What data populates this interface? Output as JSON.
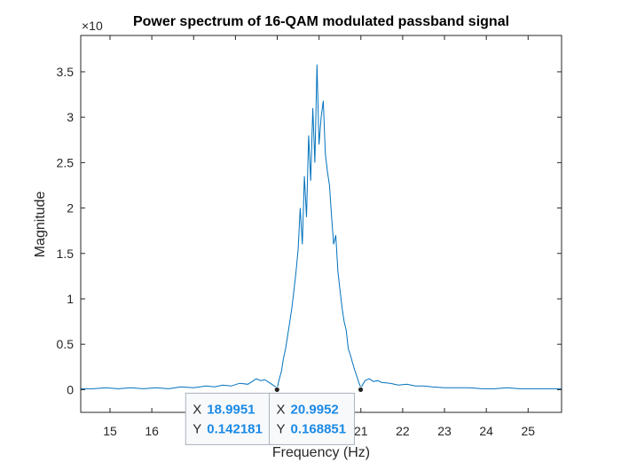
{
  "chart_data": {
    "type": "line",
    "title": "Power spectrum of 16-QAM modulated passband signal",
    "xlabel": "Frequency (Hz)",
    "ylabel": "Magnitude",
    "y_exponent_label": "×10",
    "xlim": [
      14.3,
      25.8
    ],
    "ylim": [
      -0.25,
      3.9
    ],
    "xticks": [
      15,
      16,
      17,
      18,
      19,
      20,
      21,
      22,
      23,
      24,
      25
    ],
    "xtick_labels": [
      "15",
      "16",
      "17",
      "18",
      "19",
      "20",
      "21",
      "22",
      "23",
      "24",
      "25"
    ],
    "yticks": [
      0,
      0.5,
      1,
      1.5,
      2,
      2.5,
      3,
      3.5
    ],
    "ytick_labels": [
      "0",
      "0.5",
      "1",
      "1.5",
      "2",
      "2.5",
      "3",
      "3.5"
    ],
    "grid": false,
    "line_color": "#0072BD",
    "series": [
      {
        "x": [
          14.3,
          14.6,
          14.9,
          15.2,
          15.5,
          15.8,
          16.1,
          16.4,
          16.7,
          17.0,
          17.3,
          17.5,
          17.7,
          17.9,
          18.1,
          18.3,
          18.5,
          18.6,
          18.7,
          18.8,
          18.9,
          19.0,
          19.05,
          19.1,
          19.15,
          19.2,
          19.25,
          19.3,
          19.35,
          19.4,
          19.45,
          19.5,
          19.55,
          19.6,
          19.65,
          19.7,
          19.75,
          19.8,
          19.85,
          19.9,
          19.95,
          20.0,
          20.05,
          20.1,
          20.15,
          20.2,
          20.25,
          20.3,
          20.35,
          20.4,
          20.45,
          20.5,
          20.55,
          20.6,
          20.65,
          20.7,
          20.75,
          20.8,
          20.85,
          20.9,
          20.95,
          21.0,
          21.1,
          21.2,
          21.3,
          21.4,
          21.5,
          21.7,
          21.9,
          22.1,
          22.3,
          22.5,
          22.7,
          23.0,
          23.3,
          23.6,
          23.9,
          24.2,
          24.5,
          24.8,
          25.1,
          25.4,
          25.8
        ],
        "y": [
          0.01,
          0.01,
          0.02,
          0.01,
          0.02,
          0.01,
          0.02,
          0.01,
          0.03,
          0.02,
          0.04,
          0.03,
          0.05,
          0.04,
          0.07,
          0.06,
          0.12,
          0.1,
          0.11,
          0.08,
          0.05,
          0.02,
          0.12,
          0.2,
          0.35,
          0.45,
          0.6,
          0.75,
          0.9,
          1.1,
          1.3,
          1.55,
          2.0,
          1.6,
          2.35,
          1.9,
          2.8,
          2.3,
          3.1,
          2.5,
          3.58,
          2.7,
          3.0,
          3.18,
          2.6,
          2.4,
          2.25,
          1.9,
          1.6,
          1.7,
          1.3,
          1.1,
          0.9,
          0.75,
          0.65,
          0.45,
          0.38,
          0.3,
          0.22,
          0.15,
          0.08,
          0.02,
          0.1,
          0.12,
          0.09,
          0.1,
          0.08,
          0.07,
          0.05,
          0.06,
          0.04,
          0.04,
          0.03,
          0.02,
          0.02,
          0.02,
          0.01,
          0.01,
          0.02,
          0.01,
          0.01,
          0.01,
          0.01
        ]
      }
    ],
    "datatips": [
      {
        "x_label": "X",
        "x_value": "18.9951",
        "y_label": "Y",
        "y_value": "0.142181",
        "x": 18.9951,
        "y": 0.0
      },
      {
        "x_label": "X",
        "x_value": "20.9952",
        "y_label": "Y",
        "y_value": "0.168851",
        "x": 20.9952,
        "y": 0.0
      }
    ],
    "datatip_value_color": "#1a8ae6"
  }
}
